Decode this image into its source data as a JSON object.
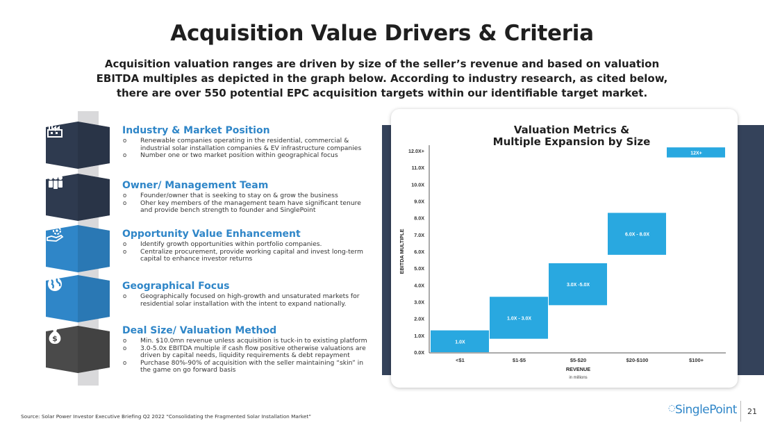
{
  "header": {
    "title": "Acquisition Value Drivers & Criteria",
    "subtitle": "Acquisition valuation ranges are driven by size of the seller’s revenue and based on valuation EBITDA multiples as depicted in the graph below. According to industry research, as cited below, there are over 550 potential EPC acquisition targets within our identifiable target market."
  },
  "sections": [
    {
      "icon": "factory-icon",
      "color": "#2e3a4f",
      "heading": "Industry & Market Position",
      "bullets": [
        "Renewable companies operating in the residential, commercial & industrial solar installation companies & EV infrastructure companies",
        "Number one or two market position within geographical focus"
      ]
    },
    {
      "icon": "team-icon",
      "color": "#2e3a4f",
      "heading": "Owner/ Management Team",
      "bullets": [
        "Founder/owner that is seeking to stay on & grow the business",
        "Oher key members of the management team have significant tenure and provide bench strength to founder and SinglePoint"
      ]
    },
    {
      "icon": "gear-hand-icon",
      "color": "#2f86c8",
      "heading": "Opportunity  Value Enhancement",
      "bullets": [
        "Identify growth opportunities within portfolio companies.",
        "Centralize procurement, provide working capital and invest long-term capital to enhance investor returns"
      ]
    },
    {
      "icon": "globe-icon",
      "color": "#2f86c8",
      "heading": "Geographical Focus",
      "bullets": [
        "Geographically focused on high-growth and unsaturated markets for residential solar installation with the intent to expand nationally."
      ]
    },
    {
      "icon": "money-bag-icon",
      "color": "#4a4a4a",
      "heading": "Deal Size/ Valuation Method",
      "bullets": [
        "Min. $10.0mn revenue unless acquisition is tuck-in to existing platform",
        "3.0-5.0x EBITDA multiple if cash flow positive otherwise valuations are driven by capital needs, liquidity requirements & debt repayment",
        "Purchase 80%-90% of acquisition with the seller maintaining “skin” in the game on go forward basis"
      ]
    }
  ],
  "footer": {
    "source": "Source: Solar Power Investor Executive Briefing Q2 2022 “Consolidating the Fragmented Solar Installation Market”",
    "logo": "SinglePoint",
    "page_number": "21"
  },
  "chart_data": {
    "type": "floating-bar",
    "title": "Valuation Metrics & Multiple Expansion by Size",
    "xlabel": "REVENUE",
    "xlabel_note": "in millions",
    "ylabel": "EBITDA MULTIPLE",
    "ylim": [
      0,
      12
    ],
    "yticks": [
      "0.0X",
      "1.0X",
      "2.0X",
      "3.0X",
      "4.0X",
      "5.0X",
      "6.0X",
      "7.0X",
      "8.0X",
      "9.0X",
      "10.0X",
      "11.0X",
      "12.0X+"
    ],
    "categories": [
      "<$1",
      "$1-$5",
      "$5-$20",
      "$20-$100",
      "$100+"
    ],
    "ranges": [
      {
        "low": 0.0,
        "high": 1.3,
        "label": "1.0X"
      },
      {
        "low": 0.8,
        "high": 3.3,
        "label": "1.0X - 3.0X"
      },
      {
        "low": 2.8,
        "high": 5.3,
        "label": "3.0X -5.0X"
      },
      {
        "low": 5.8,
        "high": 8.3,
        "label": "6.0X - 8.0X"
      },
      {
        "low": 11.6,
        "high": 12.2,
        "label": "12X+"
      }
    ],
    "bar_color": "#29a8e0",
    "grid": false
  }
}
